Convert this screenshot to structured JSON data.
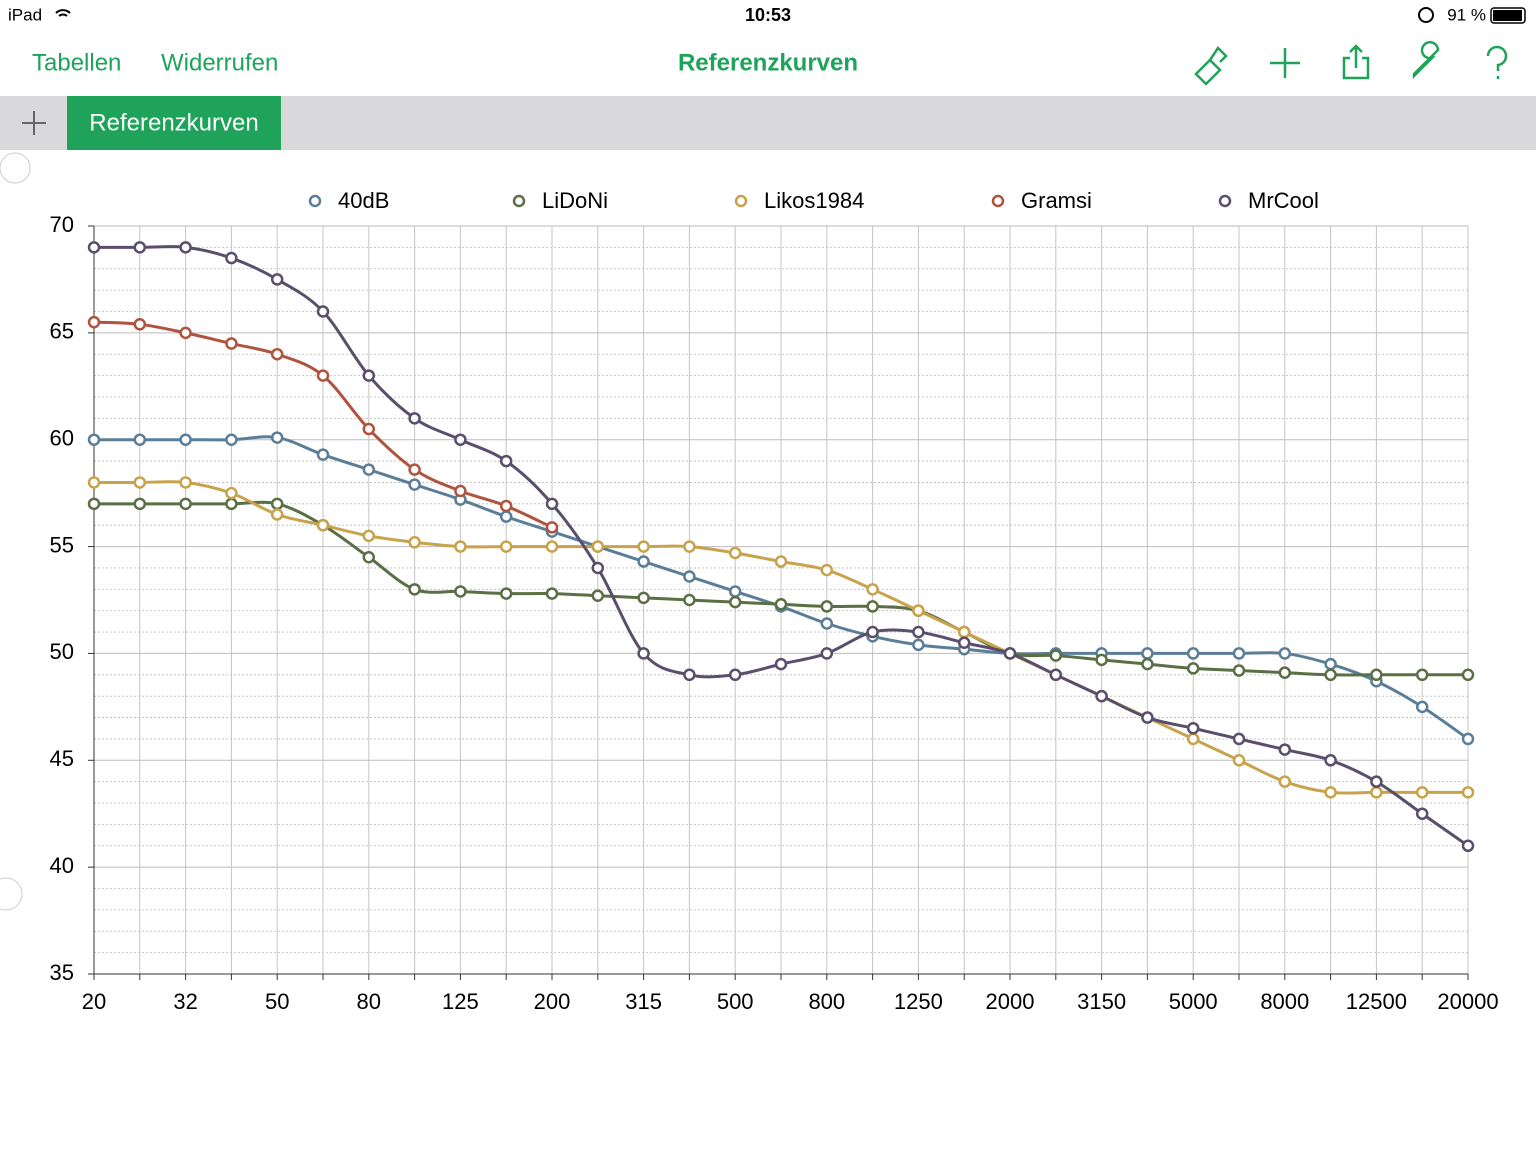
{
  "status_bar": {
    "device": "iPad",
    "time": "10:53",
    "battery": "91 %"
  },
  "toolbar": {
    "left": [
      "Tabellen",
      "Widerrufen"
    ],
    "title": "Referenzkurven"
  },
  "tabs": [
    "Referenzkurven"
  ],
  "chart_data": {
    "type": "line",
    "categories": [
      "20",
      null,
      "32",
      null,
      "50",
      null,
      "80",
      null,
      "125",
      null,
      "200",
      null,
      "315",
      null,
      "500",
      null,
      "800",
      null,
      "1250",
      null,
      "2000",
      null,
      "3150",
      null,
      "5000",
      null,
      "8000",
      null,
      "12500",
      null,
      "20000"
    ],
    "ylim": [
      35,
      70
    ],
    "yticks": [
      35,
      40,
      45,
      50,
      55,
      60,
      65,
      70
    ],
    "grid": true,
    "legend": "top",
    "series": [
      {
        "name": "40dB",
        "color": "#5b7e98",
        "values": [
          60,
          60,
          60,
          60,
          60.1,
          59.3,
          58.6,
          57.9,
          57.2,
          56.4,
          55.7,
          55,
          54.3,
          53.6,
          52.9,
          52.2,
          51.4,
          50.8,
          50.4,
          50.2,
          50,
          50,
          50,
          50,
          50,
          50,
          50,
          49.5,
          48.7,
          47.5,
          46
        ]
      },
      {
        "name": "LiDoNi",
        "color": "#5b6f45",
        "values": [
          57,
          57,
          57,
          57,
          57,
          56,
          54.5,
          53,
          52.9,
          52.8,
          52.8,
          52.7,
          52.6,
          52.5,
          52.4,
          52.3,
          52.2,
          52.2,
          52,
          51,
          50,
          49.9,
          49.7,
          49.5,
          49.3,
          49.2,
          49.1,
          49,
          49,
          49,
          49
        ]
      },
      {
        "name": "Likos1984",
        "color": "#c8a34b",
        "values": [
          58,
          58,
          58,
          57.5,
          56.5,
          56,
          55.5,
          55.2,
          55,
          55,
          55,
          55,
          55,
          55,
          54.7,
          54.3,
          53.9,
          53,
          52,
          51,
          50,
          49,
          48,
          47,
          46,
          45,
          44,
          43.5,
          43.5,
          43.5,
          43.5
        ]
      },
      {
        "name": "Gramsi",
        "color": "#b0533f",
        "values": [
          65.5,
          65.4,
          65,
          64.5,
          64,
          63,
          60.5,
          58.6,
          57.6,
          56.9,
          55.9,
          null,
          null,
          null,
          null,
          null,
          null,
          null,
          null,
          null,
          null,
          null,
          null,
          null,
          null,
          null,
          null,
          null,
          null,
          null,
          null
        ]
      },
      {
        "name": "MrCool",
        "color": "#5a4e6d",
        "values": [
          69,
          69,
          69,
          68.5,
          67.5,
          66,
          63,
          61,
          60,
          59,
          57,
          54,
          50,
          49,
          49,
          49.5,
          50,
          51,
          51,
          50.5,
          50,
          49,
          48,
          47,
          46.5,
          46,
          45.5,
          45,
          44,
          42.5,
          41
        ]
      }
    ]
  }
}
